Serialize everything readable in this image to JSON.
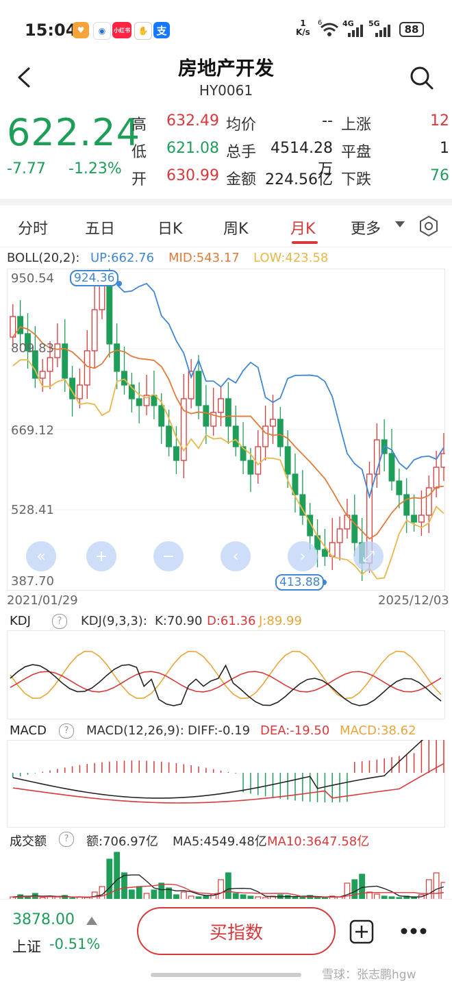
{
  "status": {
    "time": "15:04",
    "net_speed_top": "1",
    "net_speed_unit": "K/s",
    "wifi_label": "6",
    "sig1": "4G",
    "sig2": "5G",
    "battery": "88",
    "app_icons": [
      {
        "name": "heart-app-icon",
        "color": "#f5a33a",
        "glyph": "♥"
      },
      {
        "name": "news-app-icon",
        "color": "#ffffff",
        "glyph": "◉"
      },
      {
        "name": "xiaohongshu-icon",
        "color": "#ff2442",
        "glyph": "小红书"
      },
      {
        "name": "hand-app-icon",
        "color": "#444444",
        "glyph": "✋"
      },
      {
        "name": "alipay-icon",
        "color": "#1677ff",
        "glyph": "支"
      }
    ]
  },
  "header": {
    "title": "房地产开发",
    "code": "HY0061"
  },
  "quote": {
    "price": "622.24",
    "change": "-7.77",
    "change_pct": "-1.23%",
    "high_label": "高",
    "high": "632.49",
    "low_label": "低",
    "low": "621.08",
    "open_label": "开",
    "open": "630.99",
    "avg_label": "均价",
    "avg": "--",
    "vol_label": "总手",
    "vol": "4514.28万",
    "amount_label": "金额",
    "amount": "224.56亿",
    "up_label": "上涨",
    "up": "12",
    "flat_label": "平盘",
    "flat": "1",
    "down_label": "下跌",
    "down": "76"
  },
  "tabs": [
    "分时",
    "五日",
    "日K",
    "周K",
    "月K",
    "更多"
  ],
  "active_tab": "月K",
  "boll": {
    "name": "BOLL(20,2):",
    "up": "UP:662.76",
    "mid": "MID:543.17",
    "low": "LOW:423.58",
    "y_labels": [
      "950.54",
      "809.83",
      "669.12",
      "528.41",
      "387.70"
    ],
    "max_tag": "924.36",
    "min_tag": "413.88",
    "start_date": "2021/01/29",
    "end_date": "2025/12/03"
  },
  "kdj": {
    "title": "KDJ",
    "params": "KDJ(9,3,3):",
    "k": "K:70.90",
    "d": "D:61.36",
    "j": "J:89.99"
  },
  "macd": {
    "title": "MACD",
    "params": "MACD(12,26,9):",
    "diff": "DIFF:-0.19",
    "dea": "DEA:-19.50",
    "macd": "MACD:38.62"
  },
  "volume": {
    "title": "成交额",
    "amt": "额:706.97亿",
    "ma5": "MA5:4549.48亿",
    "ma10": "MA10:3647.58亿"
  },
  "bottom": {
    "index_price": "3878.00",
    "index_name": "上证",
    "index_change": "-0.51%",
    "buy_label": "买指数",
    "watermark": "雪球：张志鹏hgw"
  },
  "colors": {
    "up": "#d8393b",
    "down": "#1f9e5a",
    "boll_up": "#3f86d4",
    "boll_mid": "#e07b3a",
    "boll_low": "#e8b84a"
  }
}
